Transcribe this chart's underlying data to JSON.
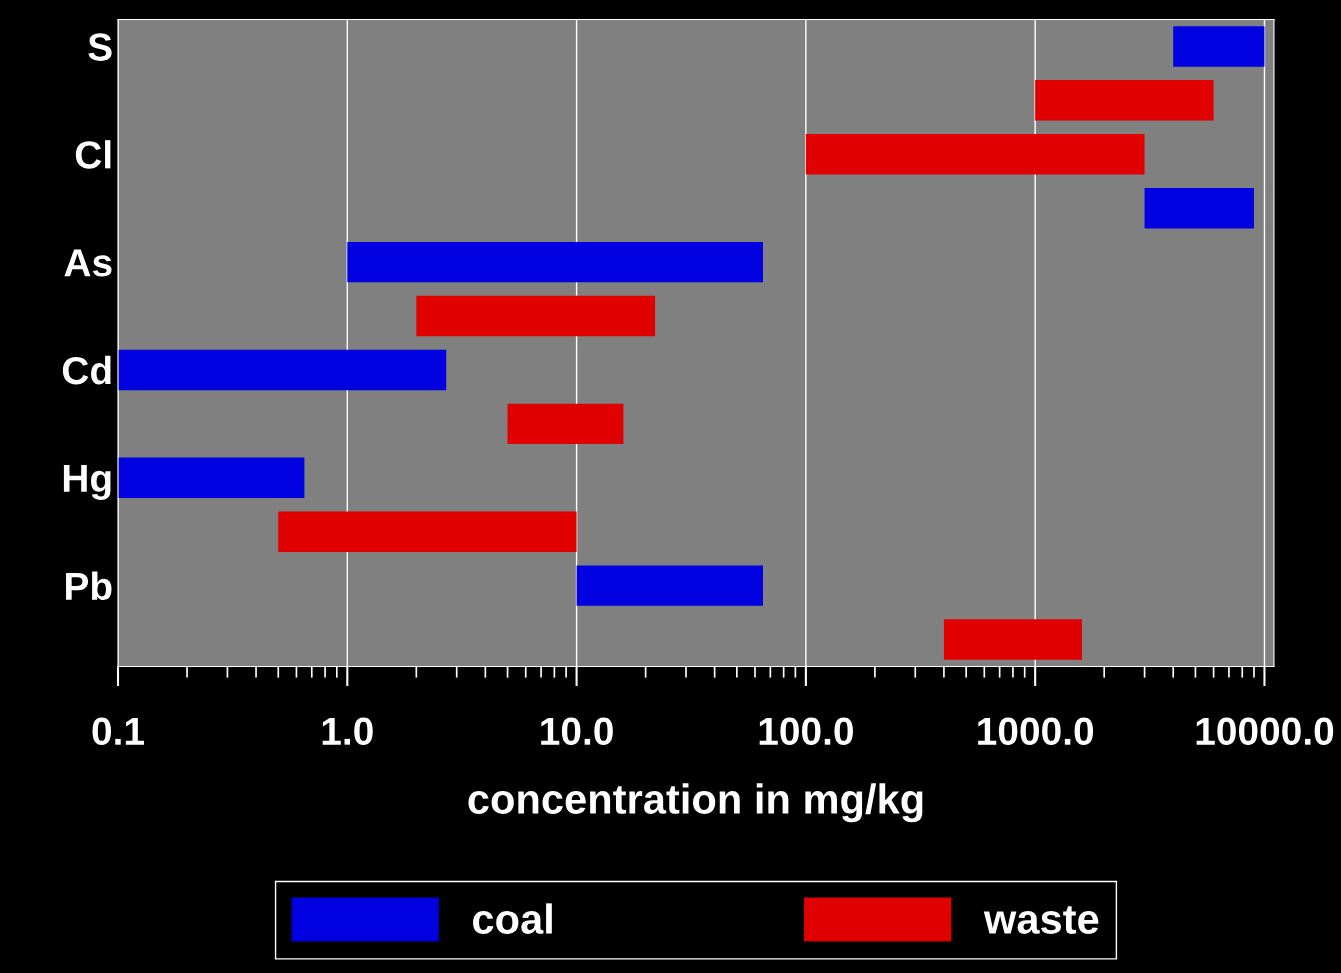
{
  "chart_data": {
    "type": "bar",
    "orientation": "horizontal",
    "xlabel": "concentration in mg/kg",
    "categories": [
      "S",
      null,
      "Cl",
      null,
      "As",
      null,
      "Cd",
      null,
      "Hg",
      null,
      "Pb",
      null
    ],
    "series": [
      {
        "name": "coal",
        "color": "#0000e0",
        "base": [
          4000,
          null,
          null,
          3000,
          1,
          null,
          0.1,
          null,
          0.1,
          null,
          10,
          null
        ],
        "values": [
          6000,
          null,
          null,
          6000,
          64,
          null,
          2.6,
          null,
          0.55,
          null,
          55,
          null
        ]
      },
      {
        "name": "waste",
        "color": "#e00000",
        "base": [
          null,
          1000,
          100,
          null,
          null,
          2,
          null,
          5,
          null,
          0.5,
          null,
          400
        ],
        "values": [
          null,
          5000,
          2900,
          null,
          null,
          20,
          null,
          11,
          null,
          9.5,
          null,
          1200
        ]
      }
    ],
    "log": "x",
    "xlim": [
      0.1,
      11000
    ],
    "xticks": [
      {
        "value": 0.1,
        "label": "0.1"
      },
      {
        "value": 1,
        "label": "1.0"
      },
      {
        "value": 10,
        "label": "10.0"
      },
      {
        "value": 100,
        "label": "100.0"
      },
      {
        "value": 1000,
        "label": "1000.0"
      },
      {
        "value": 10000,
        "label": "10000.0"
      }
    ],
    "grid": "x",
    "legend": "bottom"
  }
}
